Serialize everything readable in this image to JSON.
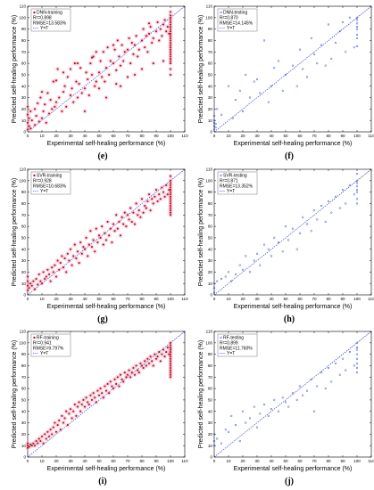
{
  "figure": {
    "xlabel": "Experimental self-healing performance (%)",
    "ylabel": "Predicted self-healing performance (%)",
    "ticks": [
      0,
      10,
      20,
      30,
      40,
      50,
      60,
      70,
      80,
      90,
      100,
      110
    ],
    "xlim": [
      0,
      110
    ],
    "ylim": [
      0,
      110
    ]
  },
  "chart_data": [
    {
      "type": "scatter",
      "letter": "(e)",
      "legend_name": "DNN-training",
      "r2_label": "R²=0.898",
      "rmse_label": "RMSE=13.583%",
      "ref_label": "Y=T",
      "point_color": "#b3121b",
      "halo": true,
      "legend_placement": "top-left",
      "x": [
        0,
        0,
        0,
        0,
        1,
        1,
        2,
        2,
        3,
        5,
        5,
        6,
        7,
        8,
        9,
        10,
        11,
        12,
        13,
        14,
        15,
        16,
        17,
        18,
        19,
        20,
        21,
        22,
        24,
        25,
        26,
        27,
        28,
        30,
        31,
        32,
        33,
        34,
        35,
        36,
        37,
        38,
        40,
        41,
        42,
        43,
        44,
        45,
        46,
        47,
        48,
        50,
        51,
        52,
        53,
        54,
        55,
        56,
        57,
        58,
        60,
        61,
        62,
        63,
        64,
        65,
        66,
        67,
        68,
        70,
        71,
        72,
        73,
        74,
        75,
        76,
        77,
        78,
        80,
        81,
        82,
        83,
        84,
        85,
        86,
        87,
        88,
        90,
        91,
        92,
        93,
        94,
        95,
        96,
        97,
        98,
        99,
        100,
        100,
        100,
        100,
        100,
        100,
        100,
        100,
        100,
        100,
        100,
        100,
        100,
        100,
        100,
        100,
        100,
        100,
        100,
        100,
        100,
        100,
        100,
        100,
        100,
        20,
        30,
        40,
        45,
        55,
        65,
        75,
        85,
        95,
        10,
        35,
        50,
        60,
        70,
        80,
        25,
        48,
        62,
        88
      ],
      "y": [
        2,
        8,
        15,
        22,
        5,
        12,
        3,
        18,
        10,
        6,
        20,
        14,
        25,
        9,
        30,
        12,
        18,
        24,
        8,
        34,
        16,
        28,
        20,
        44,
        22,
        26,
        55,
        30,
        18,
        35,
        40,
        22,
        48,
        32,
        38,
        26,
        60,
        44,
        30,
        42,
        56,
        34,
        38,
        52,
        46,
        32,
        60,
        50,
        66,
        40,
        44,
        52,
        62,
        48,
        70,
        44,
        56,
        74,
        50,
        62,
        60,
        72,
        54,
        80,
        66,
        58,
        76,
        62,
        70,
        72,
        82,
        60,
        78,
        68,
        76,
        84,
        66,
        72,
        80,
        90,
        74,
        84,
        70,
        86,
        92,
        78,
        82,
        88,
        96,
        80,
        90,
        84,
        94,
        98,
        88,
        92,
        86,
        100,
        98,
        96,
        94,
        92,
        90,
        88,
        86,
        84,
        82,
        80,
        78,
        76,
        74,
        72,
        70,
        68,
        66,
        64,
        62,
        60,
        55,
        50,
        102,
        105,
        45,
        55,
        18,
        65,
        30,
        40,
        50,
        95,
        62,
        35,
        60,
        38,
        76,
        48,
        55,
        52,
        70,
        42,
        60
      ]
    },
    {
      "type": "scatter",
      "letter": "(f)",
      "legend_name": "DNN-testing",
      "r2_label": "R²=0.870",
      "rmse_label": "RMSE=14.145%",
      "ref_label": "Y=T",
      "point_color": "#3a4fd6",
      "halo": false,
      "legend_placement": "top-left",
      "x": [
        0,
        0,
        0,
        0,
        0,
        1,
        1,
        2,
        5,
        10,
        13,
        15,
        18,
        20,
        22,
        25,
        28,
        30,
        32,
        35,
        38,
        40,
        42,
        45,
        48,
        50,
        55,
        58,
        60,
        62,
        65,
        68,
        70,
        72,
        75,
        78,
        80,
        82,
        85,
        88,
        90,
        92,
        95,
        98,
        100,
        100,
        100,
        100,
        100,
        100,
        100,
        100
      ],
      "y": [
        2,
        5,
        8,
        10,
        14,
        4,
        7,
        20,
        15,
        40,
        12,
        28,
        36,
        18,
        50,
        30,
        44,
        46,
        34,
        80,
        26,
        40,
        56,
        62,
        36,
        50,
        58,
        40,
        72,
        55,
        48,
        82,
        68,
        60,
        76,
        58,
        94,
        64,
        78,
        88,
        96,
        70,
        100,
        74,
        100,
        98,
        95,
        92,
        90,
        85,
        82,
        75
      ]
    },
    {
      "type": "scatter",
      "letter": "(g)",
      "legend_name": "SVR-training",
      "r2_label": "R²=0.928",
      "rmse_label": "RMSE=10.683%",
      "ref_label": "Y=T",
      "point_color": "#b3121b",
      "halo": true,
      "legend_placement": "top-left",
      "x": [
        0,
        0,
        0,
        0,
        1,
        2,
        3,
        4,
        5,
        6,
        7,
        8,
        9,
        10,
        11,
        12,
        13,
        14,
        15,
        16,
        17,
        18,
        19,
        20,
        21,
        22,
        23,
        24,
        25,
        26,
        27,
        28,
        29,
        30,
        31,
        32,
        33,
        34,
        35,
        36,
        37,
        38,
        39,
        40,
        41,
        42,
        43,
        44,
        45,
        46,
        47,
        48,
        49,
        50,
        51,
        52,
        53,
        54,
        55,
        56,
        57,
        58,
        59,
        60,
        61,
        62,
        63,
        64,
        65,
        66,
        67,
        68,
        69,
        70,
        71,
        72,
        73,
        74,
        75,
        76,
        77,
        78,
        79,
        80,
        81,
        82,
        83,
        84,
        85,
        86,
        87,
        88,
        89,
        90,
        91,
        92,
        93,
        94,
        95,
        96,
        97,
        98,
        99,
        100,
        100,
        100,
        100,
        100,
        100,
        100,
        100,
        100,
        100,
        100,
        100,
        100,
        100,
        100,
        100,
        100
      ],
      "y": [
        4,
        8,
        12,
        16,
        6,
        10,
        8,
        12,
        5,
        14,
        9,
        18,
        12,
        10,
        20,
        14,
        16,
        22,
        18,
        12,
        24,
        20,
        26,
        16,
        30,
        22,
        28,
        34,
        24,
        32,
        20,
        36,
        30,
        40,
        26,
        34,
        44,
        32,
        38,
        28,
        46,
        36,
        42,
        40,
        50,
        34,
        44,
        56,
        42,
        48,
        38,
        58,
        46,
        52,
        50,
        60,
        44,
        54,
        48,
        64,
        52,
        58,
        46,
        62,
        56,
        70,
        58,
        64,
        52,
        68,
        62,
        72,
        60,
        70,
        66,
        76,
        64,
        72,
        62,
        80,
        70,
        74,
        68,
        84,
        72,
        78,
        76,
        82,
        88,
        74,
        84,
        80,
        86,
        92,
        82,
        88,
        84,
        94,
        90,
        86,
        96,
        88,
        92,
        100,
        98,
        96,
        94,
        92,
        90,
        88,
        86,
        84,
        82,
        80,
        78,
        76,
        74,
        72,
        70,
        104
      ]
    },
    {
      "type": "scatter",
      "letter": "(h)",
      "legend_name": "SVR-testing",
      "r2_label": "R²=0.871",
      "rmse_label": "RMSE=13.352%",
      "ref_label": "Y=T",
      "point_color": "#3a4fd6",
      "halo": false,
      "legend_placement": "top-left",
      "x": [
        0,
        0,
        0,
        2,
        5,
        8,
        10,
        12,
        15,
        18,
        20,
        22,
        25,
        28,
        30,
        32,
        35,
        38,
        40,
        42,
        45,
        48,
        50,
        52,
        55,
        58,
        60,
        62,
        65,
        68,
        70,
        72,
        75,
        78,
        80,
        82,
        85,
        88,
        90,
        92,
        95,
        98,
        100,
        100,
        100,
        100,
        100,
        100,
        100,
        100
      ],
      "y": [
        2,
        6,
        10,
        12,
        14,
        16,
        20,
        12,
        18,
        26,
        22,
        34,
        20,
        30,
        36,
        26,
        44,
        40,
        34,
        50,
        46,
        38,
        60,
        48,
        58,
        40,
        54,
        68,
        62,
        56,
        74,
        66,
        78,
        64,
        82,
        72,
        86,
        76,
        92,
        80,
        96,
        88,
        100,
        106,
        98,
        95,
        92,
        90,
        84,
        80
      ]
    },
    {
      "type": "scatter",
      "letter": "(i)",
      "legend_name": "RF-training",
      "r2_label": "R²=0.941",
      "rmse_label": "RMSE=9.797%",
      "ref_label": "Y=T",
      "point_color": "#b3121b",
      "halo": true,
      "legend_placement": "top-left",
      "x": [
        0,
        0,
        0,
        1,
        2,
        3,
        4,
        5,
        6,
        7,
        8,
        9,
        10,
        11,
        12,
        13,
        14,
        15,
        16,
        17,
        18,
        19,
        20,
        21,
        22,
        23,
        24,
        25,
        26,
        27,
        28,
        29,
        30,
        31,
        32,
        33,
        34,
        35,
        36,
        37,
        38,
        39,
        40,
        41,
        42,
        43,
        44,
        45,
        46,
        47,
        48,
        49,
        50,
        51,
        52,
        53,
        54,
        55,
        56,
        57,
        58,
        59,
        60,
        61,
        62,
        63,
        64,
        65,
        66,
        67,
        68,
        69,
        70,
        71,
        72,
        73,
        74,
        75,
        76,
        77,
        78,
        79,
        80,
        81,
        82,
        83,
        84,
        85,
        86,
        87,
        88,
        89,
        90,
        91,
        92,
        93,
        94,
        95,
        96,
        97,
        98,
        99,
        100,
        100,
        100,
        100,
        100,
        100,
        100,
        100,
        100,
        100,
        100,
        100,
        100,
        100,
        100,
        100,
        100
      ],
      "y": [
        8,
        10,
        12,
        9,
        11,
        10,
        12,
        10,
        14,
        12,
        16,
        14,
        18,
        12,
        20,
        16,
        22,
        18,
        24,
        20,
        26,
        30,
        22,
        28,
        32,
        24,
        36,
        30,
        34,
        40,
        28,
        38,
        42,
        34,
        40,
        46,
        36,
        44,
        48,
        40,
        46,
        50,
        44,
        52,
        48,
        46,
        54,
        50,
        56,
        52,
        48,
        58,
        54,
        60,
        56,
        52,
        62,
        58,
        64,
        56,
        66,
        62,
        60,
        68,
        64,
        70,
        62,
        72,
        68,
        66,
        74,
        70,
        72,
        76,
        70,
        74,
        78,
        72,
        80,
        76,
        74,
        82,
        80,
        78,
        84,
        80,
        86,
        82,
        88,
        84,
        80,
        90,
        86,
        88,
        92,
        84,
        90,
        94,
        88,
        92,
        96,
        90,
        94,
        100,
        98,
        96,
        94,
        92,
        90,
        88,
        86,
        84,
        82,
        80,
        78,
        76,
        74,
        72,
        70
      ]
    },
    {
      "type": "scatter",
      "letter": "(j)",
      "legend_name": "RF-testing",
      "r2_label": "R²=0.899",
      "rmse_label": "RMSE=11.760%",
      "ref_label": "Y=T",
      "point_color": "#3a4fd6",
      "halo": false,
      "legend_placement": "top-left",
      "x": [
        0,
        0,
        0,
        2,
        5,
        8,
        10,
        12,
        15,
        18,
        20,
        22,
        25,
        28,
        30,
        32,
        35,
        38,
        40,
        42,
        45,
        48,
        50,
        52,
        55,
        58,
        60,
        62,
        65,
        68,
        70,
        72,
        75,
        78,
        80,
        82,
        85,
        88,
        90,
        92,
        95,
        98,
        100,
        100,
        100,
        100,
        100,
        100,
        100,
        100
      ],
      "y": [
        10,
        14,
        20,
        16,
        12,
        24,
        22,
        36,
        28,
        14,
        40,
        30,
        34,
        44,
        26,
        38,
        46,
        36,
        42,
        50,
        40,
        52,
        48,
        44,
        56,
        50,
        62,
        54,
        58,
        68,
        40,
        62,
        74,
        60,
        78,
        66,
        82,
        72,
        86,
        76,
        92,
        80,
        100,
        96,
        94,
        90,
        86,
        82,
        78,
        74
      ]
    }
  ]
}
